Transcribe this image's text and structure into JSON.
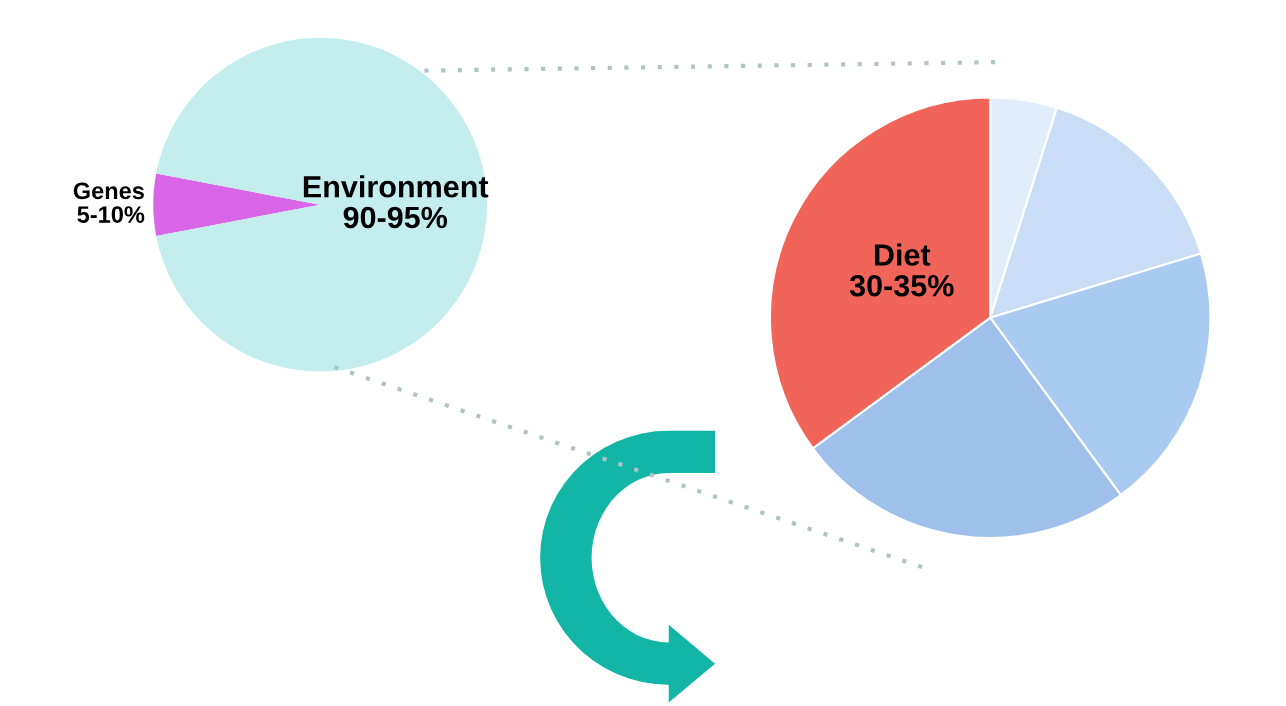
{
  "chart_data": [
    {
      "type": "pie",
      "categories": [
        "Genes 5-10%",
        "Environment 90-95%"
      ],
      "values": [
        6,
        94
      ],
      "colors": [
        "#d966e6",
        "#c4eeee"
      ]
    },
    {
      "type": "pie",
      "categories": [
        null,
        null,
        null,
        null,
        "Diet 30-35%"
      ],
      "values": [
        4.9,
        15.4,
        19.6,
        25,
        35.1
      ],
      "colors": [
        "#e2edfb",
        "#c9ddf6",
        "#a9cbf1",
        "#9ec0ea",
        "#f0645a"
      ]
    }
  ]
}
